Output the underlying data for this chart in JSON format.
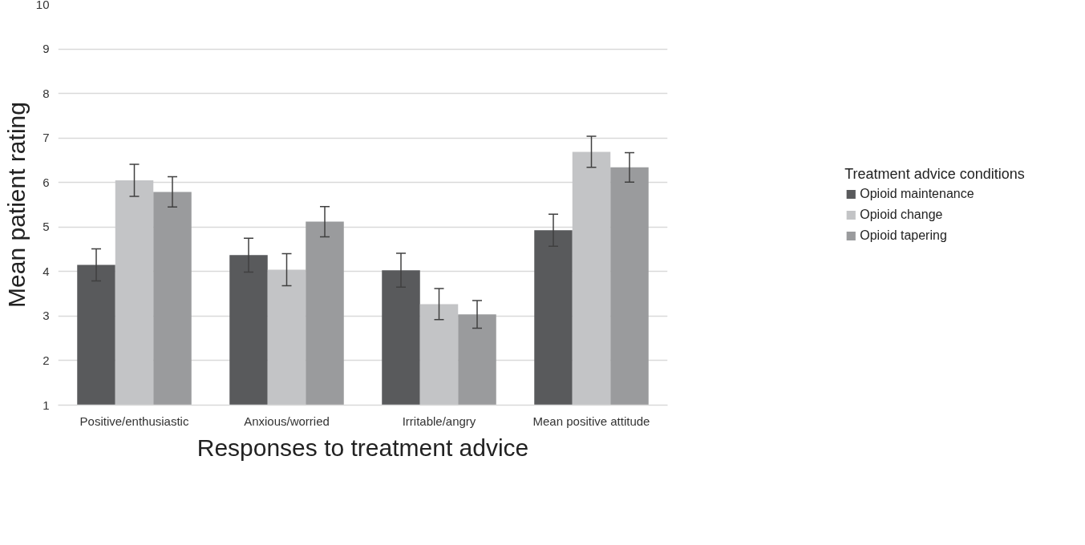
{
  "chart_data": {
    "type": "bar",
    "xlabel": "Responses to treatment advice",
    "ylabel": "Mean patient rating",
    "legend_title": "Treatment advice conditions",
    "categories": [
      "Positive/enthusiastic",
      "Anxious/worried",
      "Irritable/angry",
      "Mean positive attitude"
    ],
    "series": [
      {
        "name": "Opioid maintenance",
        "color": "#595a5c",
        "values": [
          4.15,
          4.37,
          4.03,
          4.93
        ],
        "errors": [
          0.36,
          0.38,
          0.38,
          0.36
        ]
      },
      {
        "name": "Opioid change",
        "color": "#c3c4c6",
        "values": [
          6.05,
          4.04,
          3.27,
          6.69
        ],
        "errors": [
          0.36,
          0.36,
          0.35,
          0.35
        ]
      },
      {
        "name": "Opioid tapering",
        "color": "#9a9b9d",
        "values": [
          5.79,
          5.12,
          3.04,
          6.34
        ],
        "errors": [
          0.34,
          0.34,
          0.31,
          0.33
        ]
      }
    ],
    "ylim": [
      1,
      10
    ],
    "yticks": [
      1,
      2,
      3,
      4,
      5,
      6,
      7,
      8,
      9,
      10
    ],
    "grid": "y",
    "legend": "right"
  }
}
